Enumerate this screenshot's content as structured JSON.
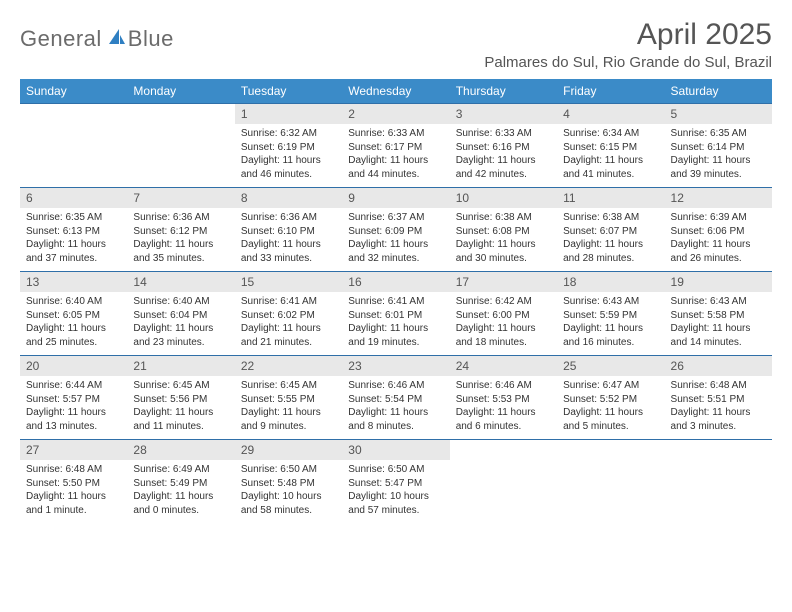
{
  "brand": {
    "part1": "General",
    "part2": "Blue"
  },
  "title": "April 2025",
  "location": "Palmares do Sul, Rio Grande do Sul, Brazil",
  "colors": {
    "header_bg": "#3b8bc8",
    "header_text": "#ffffff",
    "daynum_bg": "#e8e8e8",
    "row_border": "#2f6fa8",
    "brand_gray": "#6b6b6b",
    "brand_blue": "#2f7fc2"
  },
  "weekdays": [
    "Sunday",
    "Monday",
    "Tuesday",
    "Wednesday",
    "Thursday",
    "Friday",
    "Saturday"
  ],
  "weeks": [
    [
      null,
      null,
      {
        "n": "1",
        "sr": "6:32 AM",
        "ss": "6:19 PM",
        "dl": "11 hours and 46 minutes."
      },
      {
        "n": "2",
        "sr": "6:33 AM",
        "ss": "6:17 PM",
        "dl": "11 hours and 44 minutes."
      },
      {
        "n": "3",
        "sr": "6:33 AM",
        "ss": "6:16 PM",
        "dl": "11 hours and 42 minutes."
      },
      {
        "n": "4",
        "sr": "6:34 AM",
        "ss": "6:15 PM",
        "dl": "11 hours and 41 minutes."
      },
      {
        "n": "5",
        "sr": "6:35 AM",
        "ss": "6:14 PM",
        "dl": "11 hours and 39 minutes."
      }
    ],
    [
      {
        "n": "6",
        "sr": "6:35 AM",
        "ss": "6:13 PM",
        "dl": "11 hours and 37 minutes."
      },
      {
        "n": "7",
        "sr": "6:36 AM",
        "ss": "6:12 PM",
        "dl": "11 hours and 35 minutes."
      },
      {
        "n": "8",
        "sr": "6:36 AM",
        "ss": "6:10 PM",
        "dl": "11 hours and 33 minutes."
      },
      {
        "n": "9",
        "sr": "6:37 AM",
        "ss": "6:09 PM",
        "dl": "11 hours and 32 minutes."
      },
      {
        "n": "10",
        "sr": "6:38 AM",
        "ss": "6:08 PM",
        "dl": "11 hours and 30 minutes."
      },
      {
        "n": "11",
        "sr": "6:38 AM",
        "ss": "6:07 PM",
        "dl": "11 hours and 28 minutes."
      },
      {
        "n": "12",
        "sr": "6:39 AM",
        "ss": "6:06 PM",
        "dl": "11 hours and 26 minutes."
      }
    ],
    [
      {
        "n": "13",
        "sr": "6:40 AM",
        "ss": "6:05 PM",
        "dl": "11 hours and 25 minutes."
      },
      {
        "n": "14",
        "sr": "6:40 AM",
        "ss": "6:04 PM",
        "dl": "11 hours and 23 minutes."
      },
      {
        "n": "15",
        "sr": "6:41 AM",
        "ss": "6:02 PM",
        "dl": "11 hours and 21 minutes."
      },
      {
        "n": "16",
        "sr": "6:41 AM",
        "ss": "6:01 PM",
        "dl": "11 hours and 19 minutes."
      },
      {
        "n": "17",
        "sr": "6:42 AM",
        "ss": "6:00 PM",
        "dl": "11 hours and 18 minutes."
      },
      {
        "n": "18",
        "sr": "6:43 AM",
        "ss": "5:59 PM",
        "dl": "11 hours and 16 minutes."
      },
      {
        "n": "19",
        "sr": "6:43 AM",
        "ss": "5:58 PM",
        "dl": "11 hours and 14 minutes."
      }
    ],
    [
      {
        "n": "20",
        "sr": "6:44 AM",
        "ss": "5:57 PM",
        "dl": "11 hours and 13 minutes."
      },
      {
        "n": "21",
        "sr": "6:45 AM",
        "ss": "5:56 PM",
        "dl": "11 hours and 11 minutes."
      },
      {
        "n": "22",
        "sr": "6:45 AM",
        "ss": "5:55 PM",
        "dl": "11 hours and 9 minutes."
      },
      {
        "n": "23",
        "sr": "6:46 AM",
        "ss": "5:54 PM",
        "dl": "11 hours and 8 minutes."
      },
      {
        "n": "24",
        "sr": "6:46 AM",
        "ss": "5:53 PM",
        "dl": "11 hours and 6 minutes."
      },
      {
        "n": "25",
        "sr": "6:47 AM",
        "ss": "5:52 PM",
        "dl": "11 hours and 5 minutes."
      },
      {
        "n": "26",
        "sr": "6:48 AM",
        "ss": "5:51 PM",
        "dl": "11 hours and 3 minutes."
      }
    ],
    [
      {
        "n": "27",
        "sr": "6:48 AM",
        "ss": "5:50 PM",
        "dl": "11 hours and 1 minute."
      },
      {
        "n": "28",
        "sr": "6:49 AM",
        "ss": "5:49 PM",
        "dl": "11 hours and 0 minutes."
      },
      {
        "n": "29",
        "sr": "6:50 AM",
        "ss": "5:48 PM",
        "dl": "10 hours and 58 minutes."
      },
      {
        "n": "30",
        "sr": "6:50 AM",
        "ss": "5:47 PM",
        "dl": "10 hours and 57 minutes."
      },
      null,
      null,
      null
    ]
  ],
  "labels": {
    "sunrise": "Sunrise: ",
    "sunset": "Sunset: ",
    "daylight": "Daylight: "
  }
}
